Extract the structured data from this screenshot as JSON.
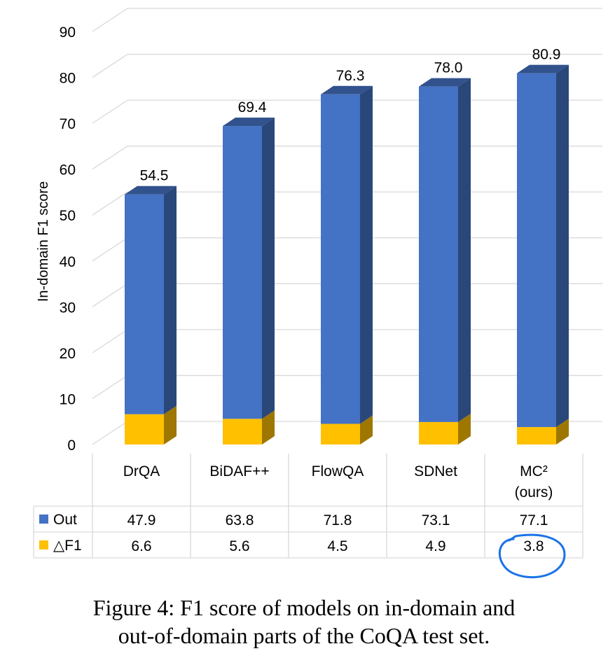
{
  "chart_data": {
    "type": "bar",
    "stacked": true,
    "style": "3d",
    "ylabel": "In-domain F1 score",
    "ylim": [
      0,
      90
    ],
    "yticks": [
      0,
      10,
      20,
      30,
      40,
      50,
      60,
      70,
      80,
      90
    ],
    "grid": true,
    "legend": "data-table",
    "categories": [
      {
        "label": "DrQA",
        "label2": ""
      },
      {
        "label": "BiDAF++",
        "label2": ""
      },
      {
        "label": "FlowQA",
        "label2": ""
      },
      {
        "label": "SDNet",
        "label2": ""
      },
      {
        "label": "MC²",
        "label2": "(ours)"
      }
    ],
    "series": [
      {
        "name": "Out",
        "color": "#4472C4",
        "values": [
          47.9,
          63.8,
          71.8,
          73.1,
          77.1
        ]
      },
      {
        "name": "△F1",
        "color": "#FFC000",
        "values": [
          6.6,
          5.6,
          4.5,
          4.9,
          3.8
        ]
      }
    ],
    "totals": [
      "54.5",
      "69.4",
      "76.3",
      "78.0",
      "80.9"
    ],
    "table_values": [
      [
        "47.9",
        "63.8",
        "71.8",
        "73.1",
        "77.1"
      ],
      [
        "6.6",
        "5.6",
        "4.5",
        "4.9",
        "3.8"
      ]
    ],
    "annotation": {
      "type": "hand-drawn circle",
      "target": "△F1 value for MC²",
      "color": "#1a73e8"
    }
  },
  "caption": {
    "line1": "Figure 4: F1 score of models on in-domain and",
    "line2": "out-of-domain parts of the CoQA test set."
  }
}
